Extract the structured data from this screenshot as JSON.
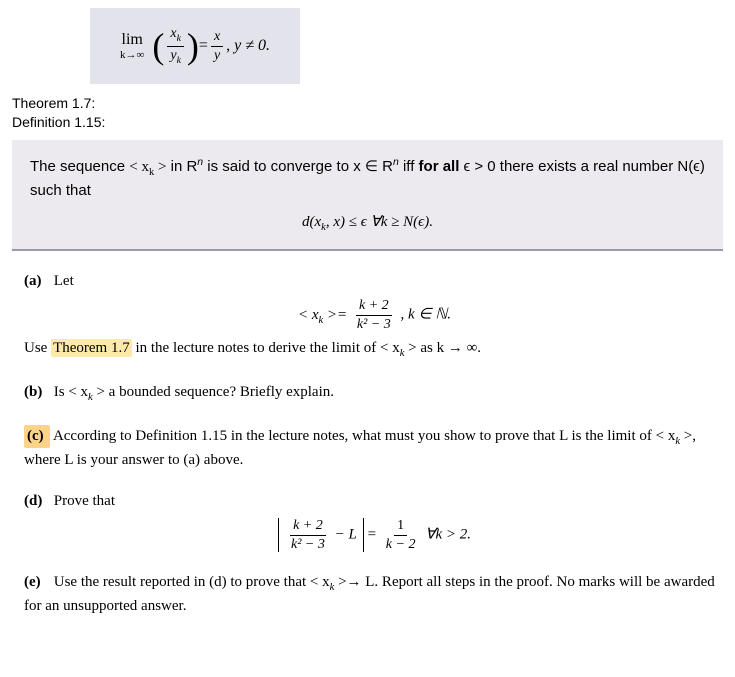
{
  "top_equation": {
    "lim_text": "lim",
    "limit_sub": "k→∞",
    "frac1_num": "x",
    "frac1_num_sub": "k",
    "frac1_den": "y",
    "frac1_den_sub": "k",
    "eq": " = ",
    "frac2_num": "x",
    "frac2_den": "y",
    "tail": ", y ≠ 0.",
    "background_color": "#e3e3eb"
  },
  "labels": {
    "theorem": "Theorem 1.7:",
    "definition": "Definition 1.15:"
  },
  "def_box": {
    "text_a": "The sequence ",
    "seq": "< x",
    "seq_sub": "k",
    "seq_close": " >",
    "text_b": " in R",
    "sup_n": "n",
    "text_c": " is said to converge to x ∈ R",
    "text_d": " iff ",
    "bold": "for all",
    "text_e": " ϵ > 0 there exists a real number N(ϵ) such that",
    "formula_d": "d",
    "formula_inside": "(x",
    "formula_sub": "k",
    "formula_rest": ", x) ≤ ϵ  ∀k ≥ N(ϵ).",
    "background_color": "#eceaef"
  },
  "qa": {
    "label": "(a)",
    "let": "Let",
    "seq_open": "< x",
    "seq_sub": "k",
    "seq_close": " >= ",
    "frac_num": "k + 2",
    "frac_den": "k² − 3",
    "tail": ", k ∈ ℕ.",
    "line2a": "Use ",
    "highlight": "Theorem 1.7",
    "line2b": " in the lecture notes to derive the limit of < x",
    "line2sub": "k",
    "line2c": " > as k → ∞."
  },
  "qb": {
    "label": "(b)",
    "text_a": "Is < x",
    "sub": "k",
    "text_b": " > a bounded sequence? Briefly explain."
  },
  "qc": {
    "label": "(c)",
    "text_a": "According to Definition 1.15 in the lecture notes, what must you show to prove that L is the limit of   < x",
    "sub": "k",
    "text_b": " >, where L is your answer to (a) above."
  },
  "qd": {
    "label": "(d)",
    "prove": "Prove that",
    "frac1_num": "k + 2",
    "frac1_den": "k² − 3",
    "minusL": " − L",
    "eq": " = ",
    "frac2_num": "1",
    "frac2_den": "k − 2",
    "tail": " ∀k > 2."
  },
  "qe": {
    "label": "(e)",
    "text_a": "Use the result reported in (d) to prove that < x",
    "sub": "k",
    "text_b": " >→ L. Report all steps in the proof. No marks will be awarded for an unsupported answer."
  }
}
